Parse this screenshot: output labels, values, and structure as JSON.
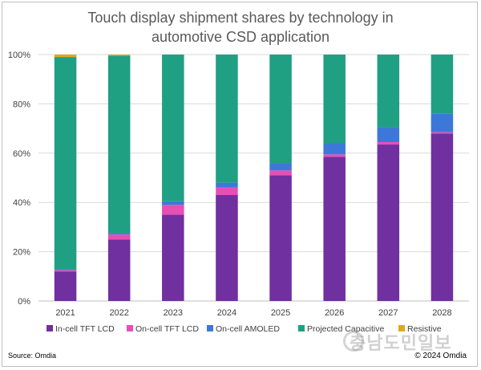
{
  "chart_data": {
    "type": "bar",
    "stacked": true,
    "title_line1": "Touch display shipment shares by technology in",
    "title_line2": "automotive CSD application",
    "categories": [
      "2021",
      "2022",
      "2023",
      "2024",
      "2025",
      "2026",
      "2027",
      "2028"
    ],
    "y_ticks": [
      "0%",
      "20%",
      "40%",
      "60%",
      "80%",
      "100%"
    ],
    "ylim": [
      0,
      100
    ],
    "grid": true,
    "legend_position": "bottom",
    "series": [
      {
        "name": "In-cell TFT LCD",
        "color": "#7030a0",
        "values": [
          12,
          25,
          35,
          43,
          51,
          58.5,
          63.5,
          68
        ]
      },
      {
        "name": "On-cell TFT LCD",
        "color": "#e64fb4",
        "values": [
          0.5,
          2,
          4,
          3,
          2,
          1,
          1,
          0.5
        ]
      },
      {
        "name": "On-cell AMOLED",
        "color": "#3c78d8",
        "values": [
          0.5,
          0.5,
          1.5,
          2,
          3,
          4.5,
          6,
          7.5
        ]
      },
      {
        "name": "Projected Capacitive",
        "color": "#1fa082",
        "values": [
          86,
          72,
          59.5,
          52,
          44,
          36,
          29.5,
          24
        ]
      },
      {
        "name": "Resistive",
        "color": "#e0a81c",
        "values": [
          1,
          0.5,
          0,
          0,
          0,
          0,
          0,
          0
        ]
      }
    ]
  },
  "source_text": "Source: Omdia",
  "copyright_text": "© 2024 Omdia",
  "watermark_text": "충남도민일보"
}
